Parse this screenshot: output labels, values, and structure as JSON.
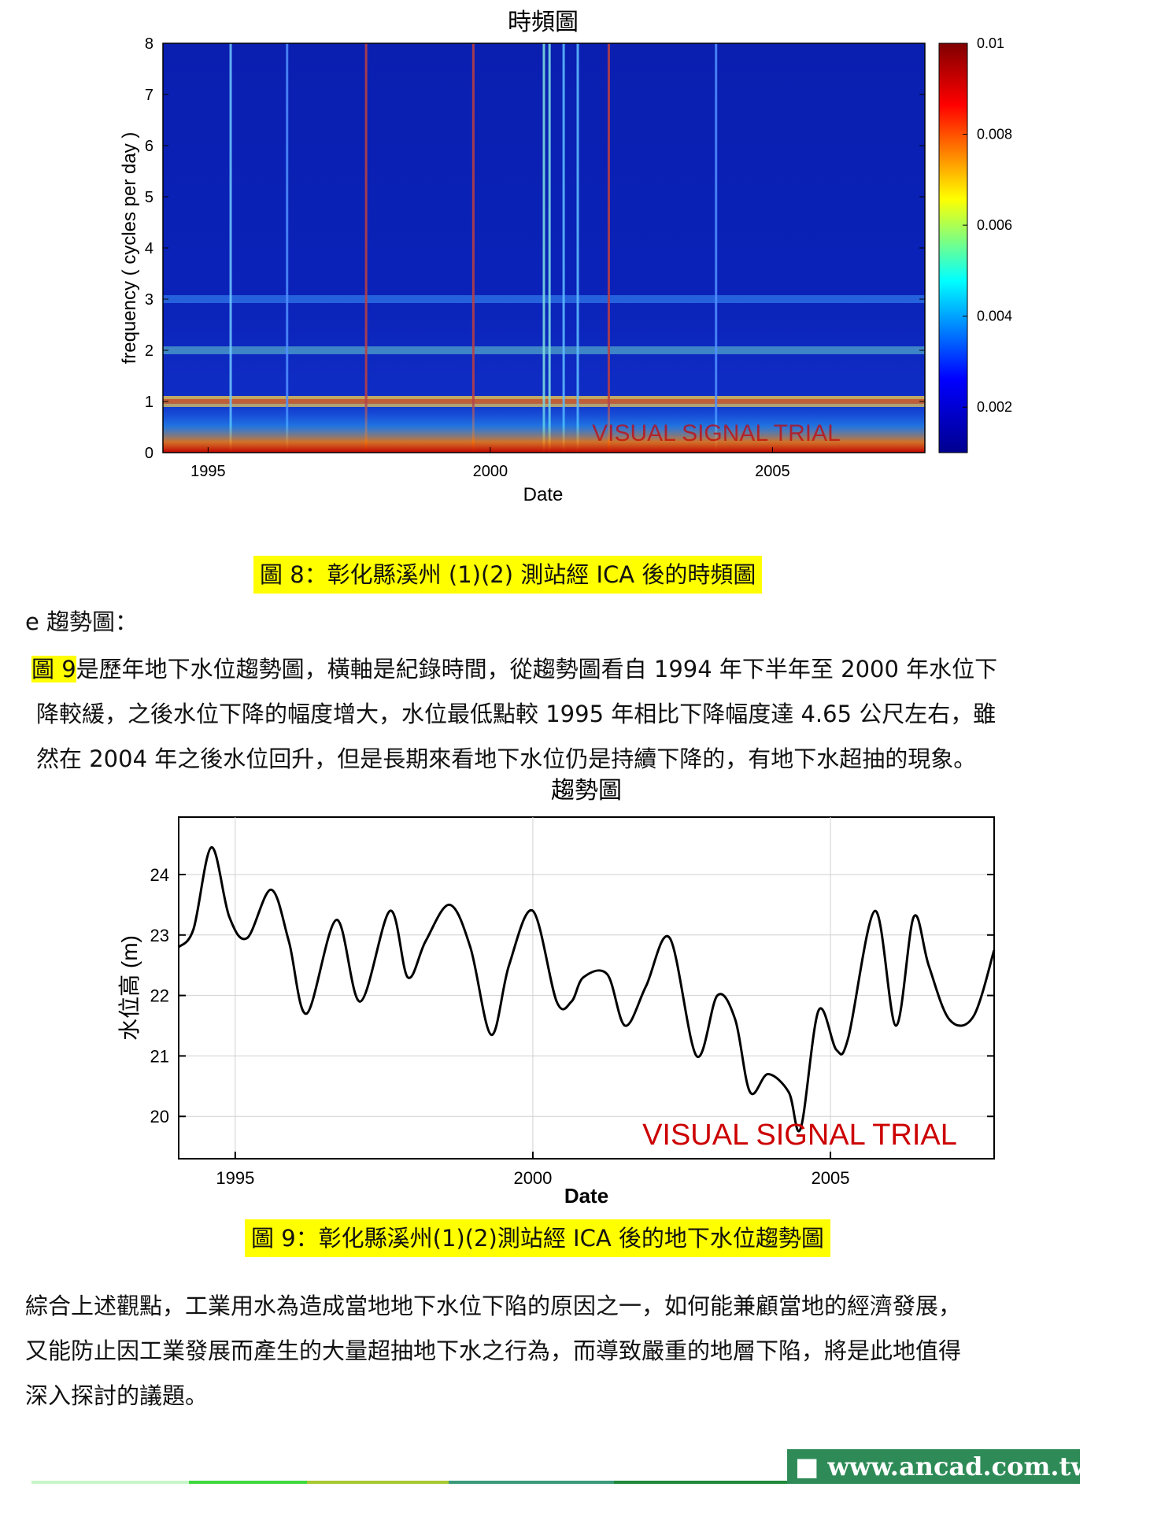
{
  "chart_data": [
    {
      "type": "heatmap",
      "title": "時頻圖",
      "xlabel": "Date",
      "ylabel": "frequency ( cycles per day )",
      "x_ticks": [
        "1995",
        "2000",
        "2005"
      ],
      "y_ticks": [
        "0",
        "1",
        "2",
        "3",
        "4",
        "5",
        "6",
        "7",
        "8"
      ],
      "xlim": [
        1994.2,
        2007.7
      ],
      "ylim": [
        0,
        8
      ],
      "colorbar_ticks": [
        "0.002",
        "0.004",
        "0.006",
        "0.008",
        "0.01"
      ],
      "colorbar_range": [
        0.001,
        0.01
      ],
      "colormap": [
        "#00008f",
        "#0000ff",
        "#00ffff",
        "#ffff00",
        "#ff0000",
        "#800000"
      ],
      "bands": [
        {
          "frequency": 1,
          "level": 0.0055
        },
        {
          "frequency": 2,
          "level": 0.004
        },
        {
          "frequency": 3,
          "level": 0.003
        }
      ],
      "watermark": "VISUAL SIGNAL TRIAL"
    },
    {
      "type": "line",
      "title": "趨勢圖",
      "xlabel": "Date",
      "ylabel": "水位高 (m)",
      "x_ticks": [
        "1995",
        "2000",
        "2005"
      ],
      "y_ticks": [
        "20",
        "21",
        "22",
        "23",
        "24"
      ],
      "xlim": [
        1994.05,
        2007.75
      ],
      "ylim": [
        19.3,
        24.95
      ],
      "grid": true,
      "series": [
        {
          "x": [
            1994.05,
            1994.3,
            1994.6,
            1994.9,
            1995.2,
            1995.6,
            1995.9,
            1996.2,
            1996.7,
            1997.1,
            1997.6,
            1997.9,
            1998.2,
            1998.6,
            1998.95,
            1999.3,
            1999.6,
            2000.0,
            2000.4,
            2000.65,
            2000.85,
            2001.25,
            2001.55,
            2001.9,
            2002.3,
            2002.75,
            2003.1,
            2003.4,
            2003.65,
            2003.95,
            2004.3,
            2004.5,
            2004.8,
            2005.1,
            2005.3,
            2005.75,
            2006.1,
            2006.4,
            2006.65,
            2007.0,
            2007.4,
            2007.75
          ],
          "y": [
            22.8,
            23.1,
            24.45,
            23.3,
            22.95,
            23.75,
            22.9,
            21.7,
            23.25,
            21.9,
            23.4,
            22.3,
            22.9,
            23.5,
            22.8,
            21.35,
            22.5,
            23.4,
            21.9,
            21.9,
            22.3,
            22.35,
            21.5,
            22.15,
            22.95,
            21.0,
            22.0,
            21.6,
            20.4,
            20.7,
            20.4,
            19.8,
            21.75,
            21.1,
            21.3,
            23.4,
            21.5,
            23.3,
            22.5,
            21.6,
            21.65,
            22.75
          ]
        }
      ],
      "watermark": "VISUAL SIGNAL TRIAL"
    }
  ],
  "captions": {
    "fig8": "圖 8：彰化縣溪州 (1)(2) 測站經 ICA 後的時頻圖",
    "fig9": "圖 9：彰化縣溪州(1)(2)測站經 ICA 後的地下水位趨勢圖"
  },
  "section": {
    "heading": "e 趨勢圖："
  },
  "para1": {
    "ref": "圖 9",
    "line1_rest": "是歷年地下水位趨勢圖，橫軸是紀錄時間，從趨勢圖看自 1994 年下半年至 2000 年水位下",
    "line2": "降較緩，之後水位下降的幅度增大，水位最低點較 1995 年相比下降幅度達 4.65 公尺左右，雖",
    "line3": "然在 2004 年之後水位回升，但是長期來看地下水位仍是持續下降的，有地下水超抽的現象。"
  },
  "para2": {
    "line1": "綜合上述觀點，工業用水為造成當地地下水位下陷的原因之一，如何能兼顧當地的經濟發展，",
    "line2": "又能防止因工業發展而產生的大量超抽地下水之行為，而導致嚴重的地層下陷，將是此地值得",
    "line3": "深入探討的議題。"
  },
  "footer": {
    "url": "■ www.ancad.com.tw",
    "line_colors": [
      "#c8f5c8",
      "#3fd83f",
      "#a8c832",
      "#3a9a7a",
      "#1f8a3a"
    ],
    "box_color": "#2e8b57"
  }
}
